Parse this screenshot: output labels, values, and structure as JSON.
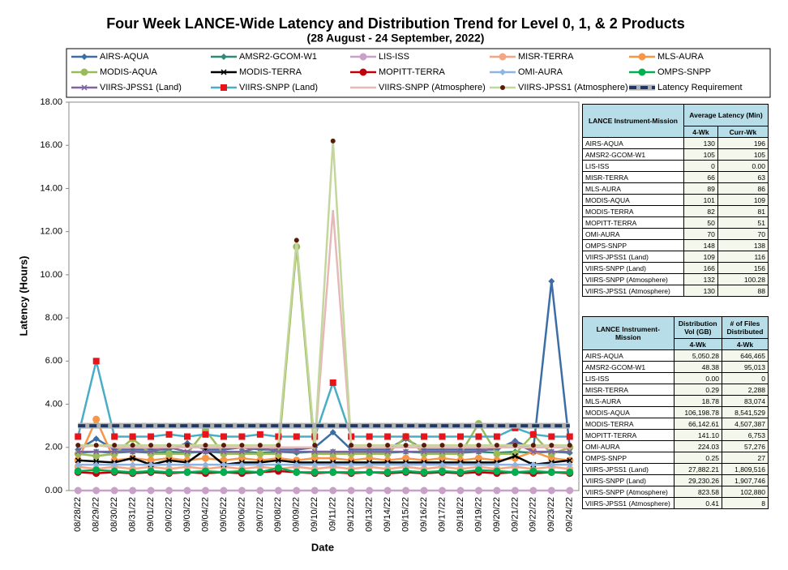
{
  "chart_data": {
    "type": "line",
    "title": "Four Week LANCE-Wide Latency and Distribution Trend for Level 0, 1, & 2 Products",
    "subtitle": "(28  August   - 24  September, 2022)",
    "x_label": "Date",
    "y_label": "Latency (Hours)",
    "categories": [
      "08/28/22",
      "08/29/22",
      "08/30/22",
      "08/31/22",
      "09/01/22",
      "09/02/22",
      "09/03/22",
      "09/04/22",
      "09/05/22",
      "09/06/22",
      "09/07/22",
      "09/08/22",
      "09/09/22",
      "09/10/22",
      "09/11/22",
      "09/12/22",
      "09/13/22",
      "09/14/22",
      "09/15/22",
      "09/16/22",
      "09/17/22",
      "09/18/22",
      "09/19/22",
      "09/20/22",
      "09/21/22",
      "09/22/22",
      "09/23/22",
      "09/24/22"
    ],
    "ylim": [
      0,
      18
    ],
    "yticks": [
      {
        "value": 0,
        "label": "0.00"
      },
      {
        "value": 2,
        "label": "2.00"
      },
      {
        "value": 4,
        "label": "4.00"
      },
      {
        "value": 6,
        "label": "6.00"
      },
      {
        "value": 8,
        "label": "8.00"
      },
      {
        "value": 10,
        "label": "10.00"
      },
      {
        "value": 12,
        "label": "12.00"
      },
      {
        "value": 14,
        "label": "14.00"
      },
      {
        "value": 16,
        "label": "16.00"
      },
      {
        "value": 18,
        "label": "18.00"
      }
    ],
    "series": [
      {
        "name": "AIRS-AQUA",
        "color": "#3c6ea6",
        "marker": "diamond",
        "values": [
          1.9,
          2.4,
          1.9,
          1.9,
          1.9,
          1.9,
          2.2,
          1.9,
          1.9,
          2.0,
          1.9,
          1.9,
          1.9,
          2.0,
          2.7,
          1.9,
          1.9,
          1.9,
          2.4,
          1.9,
          1.9,
          1.9,
          1.9,
          1.9,
          2.3,
          1.9,
          9.7,
          2.0
        ]
      },
      {
        "name": "AMSR2-GCOM-W1",
        "color": "#2e8b7a",
        "marker": "diamond",
        "values": [
          1.75,
          1.8,
          1.75,
          1.8,
          1.75,
          1.8,
          1.75,
          1.8,
          1.75,
          1.8,
          1.75,
          1.8,
          1.75,
          1.8,
          1.8,
          1.75,
          1.8,
          1.75,
          1.8,
          1.75,
          1.8,
          1.75,
          1.8,
          1.75,
          1.8,
          1.75,
          1.8,
          1.75
        ]
      },
      {
        "name": "LIS-ISS",
        "color": "#c9a0c8",
        "marker": "circle",
        "values": [
          0,
          0,
          0,
          0,
          0,
          0,
          0,
          0,
          0,
          0,
          0,
          0,
          0,
          0,
          0,
          0,
          0,
          0,
          0,
          0,
          0,
          0,
          0,
          0,
          0,
          0,
          0,
          0
        ]
      },
      {
        "name": "MISR-TERRA",
        "color": "#f4a582",
        "marker": "circle",
        "values": [
          1.1,
          1.0,
          1.1,
          1.0,
          1.1,
          1.0,
          1.1,
          1.0,
          1.1,
          1.0,
          1.1,
          1.0,
          1.1,
          1.0,
          1.1,
          1.0,
          1.1,
          1.0,
          1.1,
          1.0,
          1.1,
          1.0,
          1.1,
          1.0,
          1.1,
          1.0,
          1.1,
          1.0
        ]
      },
      {
        "name": "MLS-AURA",
        "color": "#f79646",
        "marker": "circle",
        "values": [
          1.4,
          3.3,
          1.4,
          1.5,
          1.4,
          1.5,
          1.4,
          1.5,
          1.4,
          1.5,
          1.4,
          1.5,
          1.4,
          1.5,
          1.5,
          1.4,
          1.5,
          1.4,
          1.5,
          1.4,
          1.5,
          1.4,
          1.5,
          1.4,
          1.5,
          1.8,
          1.5,
          1.4
        ]
      },
      {
        "name": "MODIS-AQUA",
        "color": "#9bbb59",
        "marker": "circle",
        "values": [
          1.7,
          1.6,
          1.7,
          2.4,
          1.7,
          1.7,
          1.7,
          2.8,
          1.7,
          1.7,
          1.7,
          1.7,
          11.3,
          1.7,
          1.7,
          1.7,
          1.7,
          1.7,
          2.5,
          1.7,
          1.7,
          1.7,
          3.1,
          1.7,
          1.7,
          2.6,
          1.7,
          2.0
        ]
      },
      {
        "name": "MODIS-TERRA",
        "color": "#000000",
        "marker": "x",
        "values": [
          1.4,
          1.35,
          1.3,
          1.5,
          1.2,
          1.4,
          1.3,
          1.9,
          1.2,
          1.3,
          1.3,
          1.4,
          1.3,
          1.3,
          1.3,
          1.3,
          1.3,
          1.3,
          1.3,
          1.3,
          1.3,
          1.3,
          1.3,
          1.3,
          1.6,
          1.2,
          1.3,
          1.4
        ]
      },
      {
        "name": "MOPITT-TERRA",
        "color": "#c0000d",
        "marker": "circle",
        "values": [
          0.85,
          0.8,
          0.85,
          0.8,
          0.85,
          0.8,
          0.85,
          0.8,
          0.85,
          0.8,
          0.85,
          0.9,
          0.85,
          0.8,
          0.85,
          0.8,
          0.85,
          0.8,
          0.85,
          0.8,
          0.85,
          0.8,
          0.85,
          0.8,
          0.85,
          0.8,
          0.85,
          0.8
        ]
      },
      {
        "name": "OMI-AURA",
        "color": "#8eb4e3",
        "marker": "diamond",
        "values": [
          1.2,
          1.2,
          1.2,
          1.2,
          1.2,
          1.2,
          1.2,
          1.2,
          1.2,
          1.2,
          1.2,
          1.2,
          1.2,
          1.2,
          1.2,
          1.2,
          1.2,
          1.2,
          1.2,
          1.2,
          1.2,
          1.2,
          1.2,
          1.2,
          1.2,
          1.2,
          1.2,
          1.2
        ]
      },
      {
        "name": "OMPS-SNPP",
        "color": "#00b050",
        "marker": "circle",
        "values": [
          0.9,
          0.95,
          0.9,
          0.85,
          0.9,
          0.85,
          0.85,
          0.9,
          0.85,
          0.9,
          0.85,
          1.05,
          0.85,
          0.85,
          0.85,
          0.85,
          0.85,
          0.85,
          0.9,
          0.85,
          0.9,
          0.85,
          0.95,
          0.9,
          0.85,
          0.9,
          0.85,
          0.85
        ]
      },
      {
        "name": "VIIRS-JPSS1 (Land)",
        "color": "#8064a2",
        "marker": "x",
        "values": [
          1.8,
          1.8,
          1.8,
          1.8,
          1.8,
          2.0,
          1.8,
          1.8,
          1.8,
          1.8,
          2.0,
          1.8,
          1.8,
          1.8,
          1.8,
          1.8,
          1.8,
          1.8,
          1.8,
          1.8,
          1.8,
          1.8,
          1.8,
          2.0,
          2.2,
          1.8,
          1.8,
          1.8
        ]
      },
      {
        "name": "VIIRS-SNPP (Land)",
        "color": "#4bacc6",
        "marker": "square",
        "values": [
          2.5,
          6.0,
          2.5,
          2.5,
          2.5,
          2.6,
          2.5,
          2.6,
          2.5,
          2.5,
          2.6,
          2.5,
          2.5,
          2.5,
          5.0,
          2.5,
          2.5,
          2.5,
          2.5,
          2.5,
          2.5,
          2.5,
          2.5,
          2.5,
          2.9,
          2.6,
          2.5,
          2.5
        ]
      },
      {
        "name": "VIIRS-SNPP (Atmosphere)",
        "color": "#e6b9b8",
        "marker": "none",
        "values": [
          2.0,
          2.1,
          2.0,
          2.0,
          2.0,
          2.0,
          2.0,
          2.0,
          2.0,
          2.0,
          2.0,
          2.0,
          2.0,
          2.0,
          13.0,
          2.0,
          2.0,
          2.0,
          2.0,
          2.0,
          2.0,
          2.0,
          2.0,
          2.0,
          2.0,
          2.0,
          2.0,
          2.0
        ]
      },
      {
        "name": "VIIRS-JPSS1 (Atmosphere)",
        "color": "#c3d69b",
        "marker": "dot",
        "values": [
          2.1,
          2.1,
          2.1,
          2.1,
          2.1,
          2.1,
          2.1,
          2.1,
          2.1,
          2.1,
          2.1,
          2.1,
          11.6,
          2.1,
          16.2,
          2.1,
          2.1,
          2.1,
          2.1,
          2.1,
          2.1,
          2.1,
          2.1,
          2.1,
          2.1,
          2.1,
          2.1,
          2.1
        ]
      },
      {
        "name": "Latency Requirement",
        "color": "#1f3864",
        "marker": "dash",
        "values": [
          3,
          3,
          3,
          3,
          3,
          3,
          3,
          3,
          3,
          3,
          3,
          3,
          3,
          3,
          3,
          3,
          3,
          3,
          3,
          3,
          3,
          3,
          3,
          3,
          3,
          3,
          3,
          3
        ]
      }
    ]
  },
  "tables": [
    {
      "headers": [
        [
          "LANCE Instrument-Mission",
          "Average Latency (Min)"
        ],
        [
          "4-Wk",
          "Curr-Wk"
        ]
      ],
      "rows": [
        [
          "AIRS-AQUA",
          "130",
          "196"
        ],
        [
          "AMSR2-GCOM-W1",
          "105",
          "105"
        ],
        [
          "LIS-ISS",
          "0",
          "0.00"
        ],
        [
          "MISR-TERRA",
          "66",
          "63"
        ],
        [
          "MLS-AURA",
          "89",
          "86"
        ],
        [
          "MODIS-AQUA",
          "101",
          "109"
        ],
        [
          "MODIS-TERRA",
          "82",
          "81"
        ],
        [
          "MOPITT-TERRA",
          "50",
          "51"
        ],
        [
          "OMI-AURA",
          "70",
          "70"
        ],
        [
          "OMPS-SNPP",
          "148",
          "138"
        ],
        [
          "VIIRS-JPSS1 (Land)",
          "109",
          "116"
        ],
        [
          "VIIRS-SNPP (Land)",
          "166",
          "156"
        ],
        [
          "VIIRS-SNPP (Atmosphere)",
          "132",
          "100.28"
        ],
        [
          "VIIRS-JPSS1 (Atmosphere)",
          "130",
          "88"
        ]
      ]
    },
    {
      "headers": [
        [
          "LANCE Instrument-Mission",
          "Distribution Vol (GB)",
          "# of Files Distributed"
        ],
        [
          "4-Wk",
          "4-Wk"
        ]
      ],
      "rows": [
        [
          "AIRS-AQUA",
          "5,050.28",
          "646,465"
        ],
        [
          "AMSR2-GCOM-W1",
          "48.38",
          "95,013"
        ],
        [
          "LIS-ISS",
          "0.00",
          "0"
        ],
        [
          "MISR-TERRA",
          "0.29",
          "2,288"
        ],
        [
          "MLS-AURA",
          "18.78",
          "83,074"
        ],
        [
          "MODIS-AQUA",
          "106,198.78",
          "8,541,529"
        ],
        [
          "MODIS-TERRA",
          "66,142.61",
          "4,507,387"
        ],
        [
          "MOPITT-TERRA",
          "141.10",
          "6,753"
        ],
        [
          "OMI-AURA",
          "224.03",
          "57,276"
        ],
        [
          "OMPS-SNPP",
          "0.25",
          "27"
        ],
        [
          "VIIRS-JPSS1 (Land)",
          "27,882.21",
          "1,809,516"
        ],
        [
          "VIIRS-SNPP (Land)",
          "29,230.26",
          "1,907,746"
        ],
        [
          "VIIRS-SNPP (Atmosphere)",
          "823.58",
          "102,880"
        ],
        [
          "VIIRS-JPSS1 (Atmosphere)",
          "0.41",
          "8"
        ]
      ]
    }
  ]
}
